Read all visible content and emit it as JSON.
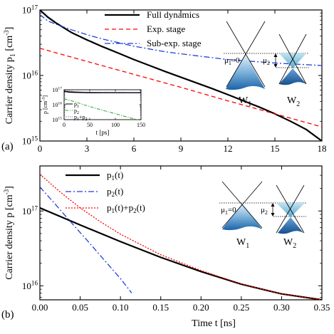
{
  "chart_data": [
    {
      "panel_label": "(a)",
      "type": "line",
      "xlabel": "",
      "ylabel": "Carrier density p",
      "ylabel_sub": "1",
      "ylabel_unit": "[cm",
      "ylabel_unit_sup": "-3",
      "ylabel_close": "]",
      "xscale": "linear",
      "yscale": "log",
      "xlim": [
        0,
        18
      ],
      "ylim": [
        1000000000000000.0,
        1e+17
      ],
      "x_ticks": [
        0,
        3,
        6,
        9,
        12,
        15,
        18
      ],
      "x_tick_labels": [
        "0",
        "3",
        "6",
        "9",
        "12",
        "15",
        "18"
      ],
      "y_ticks": [
        1000000000000000.0,
        1e+16,
        1e+17
      ],
      "y_tick_labels": [
        {
          "base": "10",
          "exp": "15"
        },
        {
          "base": "10",
          "exp": "16"
        },
        {
          "base": "10",
          "exp": "17"
        }
      ],
      "legend_position": "top-center",
      "series": [
        {
          "name": "Full dynamics",
          "style": "solid",
          "color": "#000000",
          "x": [
            0,
            0.5,
            1,
            2,
            3,
            4,
            5,
            6,
            7,
            8,
            9,
            10,
            11,
            12,
            13,
            14,
            15,
            16,
            17,
            18
          ],
          "y": [
            1e+17,
            7.8e+16,
            6.4e+16,
            4.55e+16,
            3.5e+16,
            2.75e+16,
            2.2e+16,
            1.75e+16,
            1.42e+16,
            1.15e+16,
            9400000000000000.0,
            7700000000000000.0,
            6300000000000000.0,
            5100000000000000.0,
            4100000000000000.0,
            3300000000000000.0,
            2600000000000000.0,
            2000000000000000.0,
            1500000000000000.0,
            1000000000000000.0
          ]
        },
        {
          "name": "Exp. stage",
          "style": "dashed",
          "color": "#ff0000",
          "x": [
            0,
            3,
            6,
            9,
            12,
            15,
            18
          ],
          "y": [
            2.6e+16,
            1.64e+16,
            1.04e+16,
            6600000000000000.0,
            4100000000000000.0,
            2600000000000000.0,
            1640000000000000.0
          ]
        },
        {
          "name": "Sub-exp. stage",
          "style": "dashdot",
          "color": "#1f3fd8",
          "x": [
            0,
            0.5,
            1,
            2,
            3,
            4,
            6,
            8,
            10,
            12,
            15,
            18
          ],
          "y": [
            8.5e+16,
            6.8e+16,
            6.1e+16,
            5e+16,
            4.2e+16,
            3.6e+16,
            2.8e+16,
            2.3e+16,
            2e+16,
            1.75e+16,
            1.55e+16,
            1.42e+16
          ]
        }
      ],
      "inset": {
        "xlabel": "t [ps]",
        "ylabel": "p [cm",
        "ylabel_sup": "-3",
        "ylabel_close": "]",
        "xlim": [
          0,
          150
        ],
        "ylim": [
          1000000000000000.0,
          1e+17
        ],
        "x_ticks": [
          0,
          50,
          100,
          150
        ],
        "x_tick_labels": [
          "0",
          "50",
          "100",
          "150"
        ],
        "y_ticks": [
          1000000000000000.0,
          1e+16,
          1e+17
        ],
        "y_tick_labels": [
          {
            "base": "10",
            "exp": "15"
          },
          {
            "base": "10",
            "exp": "16"
          },
          {
            "base": "10",
            "exp": "17"
          }
        ],
        "series": [
          {
            "name": "p",
            "sub": "1",
            "style": "solid",
            "color": "#000000",
            "x": [
              0,
              10,
              20,
              40,
              80,
              150
            ],
            "y": [
              8e+16,
              7e+16,
              6.8e+16,
              6.5e+16,
              6.4e+16,
              6.3e+16
            ]
          },
          {
            "name": "p",
            "sub": "2",
            "style": "dashdot",
            "color": "#2ca02c",
            "x": [
              0,
              20,
              40,
              60,
              80,
              100,
              120,
              140,
              150
            ],
            "y": [
              2.5e+16,
              1.6e+16,
              9500000000000000.0,
              6000000000000000.0,
              3800000000000000.0,
              2500000000000000.0,
              1600000000000000.0,
              1050000000000000.0,
              850000000000000.0
            ]
          },
          {
            "name": "p",
            "sub": "1",
            "plus": "+p",
            "sub2": "2",
            "style": "dotted",
            "color": "#9467bd",
            "x": [
              0,
              5,
              10,
              20,
              40,
              80,
              150
            ],
            "y": [
              1.05e+17,
              9.2e+16,
              8.4e+16,
              7.6e+16,
              7e+16,
              6.6e+16,
              6.4e+16
            ]
          }
        ]
      },
      "schematic": {
        "mu1_label": "μ",
        "mu1_sub": "1",
        "mu1_value": "=0",
        "mu2_label": "μ",
        "mu2_sub": "2",
        "w1_label": "W",
        "w1_sub": "1",
        "w2_label": "W",
        "w2_sub": "2"
      }
    },
    {
      "panel_label": "(b)",
      "type": "line",
      "xlabel": "Time t [ns]",
      "ylabel": "Carrier density p [cm",
      "ylabel_unit_sup": "-3",
      "ylabel_close": "]",
      "xscale": "linear",
      "yscale": "log",
      "xlim": [
        0,
        0.35
      ],
      "ylim": [
        6500000000000000.0,
        4e+17
      ],
      "x_ticks": [
        0,
        0.05,
        0.1,
        0.15,
        0.2,
        0.25,
        0.3,
        0.35
      ],
      "x_tick_labels": [
        "0.00",
        "0.05",
        "0.10",
        "0.15",
        "0.20",
        "0.25",
        "0.30",
        "0.35"
      ],
      "y_ticks": [
        1e+16,
        1e+17
      ],
      "y_tick_labels": [
        {
          "base": "10",
          "exp": "16"
        },
        {
          "base": "10",
          "exp": "17"
        }
      ],
      "legend_position": "top-left",
      "series": [
        {
          "name": "p",
          "sub": "1",
          "suffix": "(t)",
          "style": "solid",
          "color": "#000000",
          "x": [
            0,
            0.05,
            0.1,
            0.15,
            0.2,
            0.25,
            0.3,
            0.35
          ],
          "y": [
            1.1e+17,
            6.5e+16,
            3.9e+16,
            2.4e+16,
            1.55e+16,
            1.05e+16,
            7800000000000000.0,
            6500000000000000.0
          ]
        },
        {
          "name": "p",
          "sub": "2",
          "suffix": "(t)",
          "style": "dashdot",
          "color": "#1f3fd8",
          "x": [
            0,
            0.02,
            0.04,
            0.06,
            0.08,
            0.1,
            0.114
          ],
          "y": [
            2.1e+17,
            1.2e+17,
            6.8e+16,
            3.9e+16,
            2.2e+16,
            1.25e+16,
            8000000000000000.0
          ]
        },
        {
          "name": "p",
          "sub": "1",
          "suffix": "(t)+p",
          "sub2": "2",
          "suffix2": "(t)",
          "style": "dotted",
          "color": "#ff0000",
          "x": [
            0,
            0.025,
            0.05,
            0.075,
            0.1,
            0.15,
            0.2,
            0.25,
            0.3,
            0.35
          ],
          "y": [
            3.1e+17,
            1.8e+17,
            1.1e+17,
            7.2e+16,
            4.9e+16,
            2.6e+16,
            1.6e+16,
            1.06e+16,
            7800000000000000.0,
            6500000000000000.0
          ]
        }
      ],
      "schematic": {
        "mu1_label": "μ",
        "mu1_sub": "1",
        "mu1_value": "=0",
        "mu2_label": "μ",
        "mu2_sub": "2",
        "w1_label": "W",
        "w1_sub": "1",
        "w2_label": "W",
        "w2_sub": "2"
      }
    }
  ]
}
